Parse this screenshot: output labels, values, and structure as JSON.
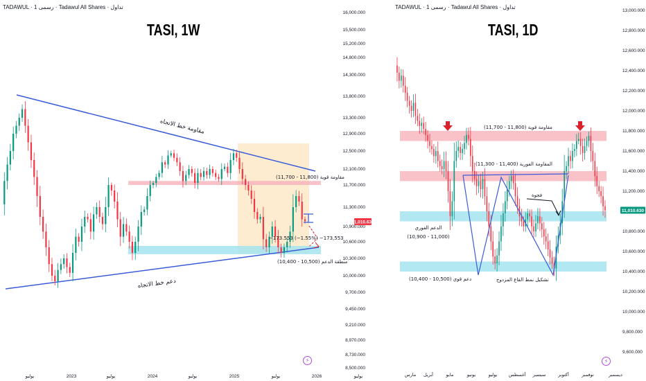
{
  "colors": {
    "up": "#089981",
    "down": "#f23645",
    "trendline": "#3a5bd9",
    "resistance_zone": "#f7b2ba",
    "support_zone": "#a5e4ee",
    "highlight_box": "#fde9c7",
    "price_label": "#089981",
    "neg_label": "#f23645",
    "arrow": "#d8232f"
  },
  "left": {
    "header": "TADAWUL · رسمی 1 · Tadawul All Shares · تداول",
    "title": "TASI, 1W",
    "annotations": {
      "resistance_trend": "مقاومة خط الاتجاه",
      "support_trend": "دعم خط الاتجاه",
      "strong_resistance": "مقاومة قوية (11,800 - 11,700)",
      "support_zone": "منطقة الدعم (10,500 - 10,400)",
      "measure": "−173.553 (−1.55%) −173,553"
    },
    "icon": "lightning-icon"
  },
  "right": {
    "header": "TADAWUL · رسمی 1 · Tadawul All Shares · تداول",
    "title": "TASI, 1D",
    "annotations": {
      "strong_resistance": "مقاومة قوية (11,800 - 11,700)",
      "immediate_resistance": "المقاومة الفورية (11,400 - 11,300)",
      "gap": "فجوة",
      "immediate_support_line1": "الدعم الفوري",
      "immediate_support_line2": "(10,900 - 11,000)",
      "strong_support": "دعم قوي (10,500 - 10,400)",
      "double_bottom": "تشكيل نمط القاع المزدوج"
    },
    "icon": "lightning-icon"
  },
  "chart_data": [
    {
      "type": "candlestick",
      "title": "TASI, 1W",
      "y_ticks": [
        "16,000.000",
        "15,500.000",
        "15,200.000",
        "14,800.000",
        "14,300.000",
        "13,800.000",
        "13,300.000",
        "12,900.000",
        "12,500.000",
        "12,100.000",
        "11,700.000",
        "11,300.000",
        "10,900.000",
        "10,600.000",
        "10,300.000",
        "10,000.000",
        "9,700.000",
        "9,450.000",
        "9,210.000",
        "8,970.000",
        "8,730.000",
        "8,500.000"
      ],
      "x_ticks": [
        "يوليو",
        "2023",
        "يوليو",
        "2024",
        "يوليو",
        "2025",
        "يوليو",
        "2026",
        "يوليو"
      ],
      "last_price": "11,010.630",
      "ylim": [
        8500,
        16000
      ],
      "zones": [
        {
          "name": "Strong resistance",
          "low": 11700,
          "high": 11800
        },
        {
          "name": "Support zone",
          "low": 10400,
          "high": 10500
        }
      ],
      "closes": [
        11350,
        11800,
        12200,
        12500,
        12900,
        13100,
        13300,
        13500,
        13100,
        12700,
        12300,
        11900,
        11500,
        11100,
        10800,
        10500,
        10200,
        10000,
        9900,
        10100,
        10200,
        10300,
        10150,
        10050,
        10400,
        10700,
        10600,
        10900,
        11100,
        11050,
        10800,
        11150,
        11300,
        11100,
        10950,
        11300,
        11700,
        11600,
        11400,
        11050,
        10700,
        10950,
        10800,
        10600,
        10400,
        10600,
        10900,
        11200,
        11250,
        11500,
        11700,
        11750,
        11900,
        12000,
        12250,
        12200,
        12400,
        12450,
        12350,
        12250,
        12050,
        11800,
        11950,
        12100,
        12000,
        11750,
        12000,
        11900,
        12050,
        11950,
        12100,
        12000,
        11900,
        11850,
        12100,
        12150,
        12000,
        12300,
        12450,
        12350,
        12100,
        11850,
        11700,
        11600,
        11450,
        11200,
        11050,
        11100,
        10650,
        10500,
        10700,
        10900,
        10700,
        10500,
        10400,
        10500,
        10600,
        10800,
        11300,
        11500,
        11400,
        11050,
        11010.63
      ]
    },
    {
      "type": "candlestick",
      "title": "TASI, 1D",
      "y_ticks": [
        "13,000.000",
        "12,800.000",
        "12,600.000",
        "12,400.000",
        "12,200.000",
        "12,000.000",
        "11,800.000",
        "11,600.000",
        "11,400.000",
        "11,200.000",
        "11,000.000",
        "10,800.000",
        "10,600.000",
        "10,400.000",
        "10,200.000",
        "10,000.000",
        "9,800.000",
        "9,600.000"
      ],
      "x_ticks": [
        "مارس",
        "أبريل",
        "مايو",
        "يونيو",
        "يوليو",
        "أغسطس",
        "سبتمبر",
        "أكتوبر",
        "نوفمبر",
        "ديسمبر"
      ],
      "last_price": "11,010.630",
      "ylim": [
        9500,
        13100
      ],
      "zones": [
        {
          "name": "Strong resistance",
          "low": 11700,
          "high": 11800
        },
        {
          "name": "Immediate resistance",
          "low": 11300,
          "high": 11400
        },
        {
          "name": "Immediate support",
          "low": 10900,
          "high": 11000
        },
        {
          "name": "Strong support",
          "low": 10400,
          "high": 10500
        }
      ],
      "closes": [
        12450,
        12380,
        12300,
        12350,
        12250,
        12180,
        12100,
        12050,
        12000,
        12080,
        11950,
        11900,
        11850,
        11880,
        11820,
        11760,
        11700,
        11650,
        11620,
        11550,
        11600,
        11500,
        11450,
        11420,
        11500,
        11400,
        11200,
        10950,
        11100,
        11500,
        11600,
        11640,
        11580,
        11620,
        11680,
        11760,
        11720,
        11550,
        11400,
        11320,
        11250,
        11300,
        11220,
        11320,
        11150,
        11000,
        10850,
        10700,
        10550,
        10480,
        10560,
        10700,
        10850,
        10980,
        11100,
        11220,
        11300,
        11350,
        11280,
        11150,
        11050,
        10950,
        10900,
        10850,
        10920,
        10980,
        10950,
        10850,
        10800,
        10880,
        10950,
        10880,
        10820,
        10750,
        10700,
        10620,
        10540,
        10480,
        10430,
        10650,
        10760,
        10880,
        11100,
        11400,
        11450,
        11550,
        11500,
        11600,
        11620,
        11700,
        11720,
        11650,
        11580,
        11650,
        11700,
        11750,
        11600,
        11500,
        11350,
        11250,
        11200,
        11150,
        11050,
        11010.63
      ]
    }
  ]
}
